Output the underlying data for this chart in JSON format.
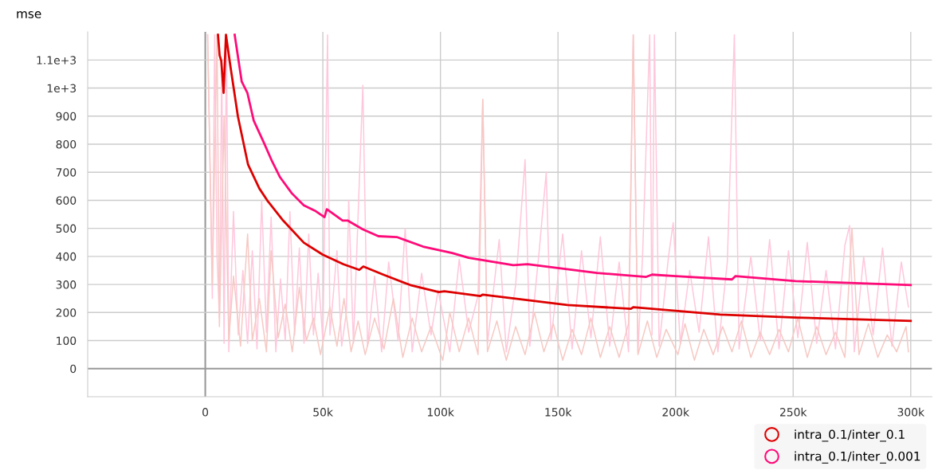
{
  "chart_data": {
    "type": "line",
    "title": "mse",
    "xlim": [
      -50000,
      309000
    ],
    "ylim": [
      -100,
      1200
    ],
    "xticks": [
      {
        "value": 0,
        "label": "0"
      },
      {
        "value": 50000,
        "label": "50k"
      },
      {
        "value": 100000,
        "label": "100k"
      },
      {
        "value": 150000,
        "label": "150k"
      },
      {
        "value": 200000,
        "label": "200k"
      },
      {
        "value": 250000,
        "label": "250k"
      },
      {
        "value": 300000,
        "label": "300k"
      }
    ],
    "yticks": [
      0,
      100,
      200,
      300,
      400,
      500,
      600,
      700,
      800,
      900,
      {
        "value": 1000,
        "label": "1e+3"
      },
      {
        "value": 1100,
        "label": "1.1e+3"
      }
    ],
    "grid": true,
    "legend": "bottom right",
    "series": [
      {
        "color": "#ffc7dc",
        "x": [
          1000,
          3000,
          4000,
          5000,
          6000,
          7000,
          8000,
          9000,
          10000,
          12000,
          14000,
          16000,
          18000,
          20000,
          22000,
          24000,
          26000,
          28000,
          30000,
          32000,
          34000,
          36000,
          38000,
          40000,
          42000,
          44000,
          46000,
          48000,
          50000,
          52000,
          53000,
          56000,
          58000,
          60000,
          61000,
          63000,
          67000,
          69000,
          72000,
          75000,
          78000,
          82000,
          85000,
          88000,
          92000,
          96000,
          99000,
          104000,
          108000,
          112000,
          116000,
          118000,
          120000,
          125000,
          128000,
          132000,
          136000,
          138000,
          142000,
          145000,
          147000,
          152000,
          156000,
          160000,
          164000,
          168000,
          172000,
          176000,
          180000,
          182000,
          184000,
          186000,
          189000,
          190000,
          191000,
          193000,
          197000,
          199000,
          202000,
          206000,
          210000,
          214000,
          218000,
          222000,
          225000,
          227000,
          232000,
          236000,
          240000,
          244000,
          248000,
          252000,
          256000,
          260000,
          264000,
          268000,
          272000,
          274000,
          276000,
          280000,
          284000,
          288000,
          292000,
          296000,
          299000
        ],
        "values": [
          1190,
          250,
          1190,
          400,
          180,
          1080,
          90,
          1190,
          60,
          560,
          120,
          350,
          90,
          420,
          70,
          600,
          130,
          540,
          60,
          320,
          100,
          560,
          120,
          430,
          90,
          480,
          120,
          340,
          100,
          1190,
          120,
          420,
          80,
          200,
          600,
          90,
          1010,
          80,
          330,
          60,
          380,
          100,
          500,
          60,
          340,
          120,
          280,
          60,
          390,
          130,
          260,
          960,
          90,
          460,
          60,
          300,
          745,
          80,
          420,
          700,
          100,
          480,
          70,
          420,
          110,
          470,
          80,
          380,
          60,
          1190,
          60,
          410,
          1190,
          120,
          1190,
          80,
          400,
          520,
          90,
          350,
          130,
          470,
          60,
          380,
          1190,
          70,
          400,
          100,
          460,
          70,
          420,
          110,
          450,
          90,
          350,
          70,
          440,
          510,
          60,
          400,
          120,
          430,
          80,
          380,
          220
        ]
      },
      {
        "color": "#f6c9c4",
        "x": [
          1000,
          3000,
          5000,
          6000,
          8000,
          10000,
          12000,
          15000,
          18000,
          20000,
          23000,
          26000,
          28000,
          31000,
          34000,
          37000,
          40000,
          43000,
          46000,
          49000,
          53000,
          56000,
          59000,
          62000,
          65000,
          68000,
          72000,
          76000,
          80000,
          84000,
          88000,
          92000,
          96000,
          101000,
          104000,
          108000,
          112000,
          116000,
          118000,
          120000,
          124000,
          128000,
          132000,
          136000,
          140000,
          144000,
          148000,
          152000,
          156000,
          160000,
          164000,
          168000,
          172000,
          176000,
          180000,
          182000,
          184000,
          188000,
          192000,
          196000,
          201000,
          204000,
          208000,
          212000,
          216000,
          220000,
          224000,
          228000,
          232000,
          236000,
          240000,
          244000,
          248000,
          252000,
          256000,
          260000,
          264000,
          268000,
          272000,
          275000,
          278000,
          282000,
          286000,
          290000,
          294000,
          298000,
          299000
        ],
        "values": [
          1190,
          300,
          1190,
          150,
          900,
          100,
          330,
          80,
          480,
          100,
          250,
          60,
          420,
          110,
          230,
          60,
          290,
          100,
          180,
          50,
          220,
          80,
          250,
          60,
          170,
          50,
          180,
          70,
          250,
          40,
          180,
          60,
          150,
          30,
          200,
          60,
          180,
          50,
          960,
          60,
          170,
          30,
          150,
          50,
          200,
          60,
          160,
          30,
          140,
          50,
          180,
          40,
          150,
          40,
          160,
          1190,
          50,
          170,
          40,
          140,
          50,
          160,
          30,
          140,
          50,
          150,
          60,
          170,
          40,
          130,
          50,
          140,
          60,
          180,
          40,
          150,
          50,
          130,
          40,
          500,
          50,
          160,
          40,
          120,
          60,
          150,
          60
        ]
      },
      {
        "name": "intra_0.1/inter_0.1",
        "color": "#dd0000",
        "x": [
          5400,
          6100,
          6800,
          7800,
          8800,
          10500,
          13900,
          18200,
          23000,
          26400,
          33100,
          41900,
          50000,
          58800,
          65500,
          67200,
          75700,
          87200,
          99300,
          101700,
          117000,
          118000,
          154000,
          181000,
          182000,
          219000,
          251000,
          300000
        ],
        "values": [
          1190,
          1116,
          1097,
          983,
          1190,
          1088,
          898,
          727,
          642,
          599,
          528,
          449,
          406,
          372,
          352,
          364,
          335,
          298,
          273,
          276,
          259,
          264,
          227,
          213,
          219,
          193,
          182,
          170
        ]
      },
      {
        "name": "intra_0.1/inter_0.001",
        "color": "#ff0a78",
        "x": [
          12500,
          15500,
          17900,
          20600,
          25000,
          28400,
          31800,
          36800,
          41900,
          46600,
          50700,
          51700,
          58400,
          60500,
          66900,
          73600,
          81400,
          92600,
          105000,
          112000,
          131000,
          137000,
          166500,
          187500,
          190000,
          200000,
          224000,
          225500,
          251000,
          300000
        ],
        "values": [
          1190,
          1023,
          983,
          884,
          804,
          739,
          682,
          625,
          582,
          563,
          540,
          568,
          528,
          528,
          497,
          472,
          469,
          435,
          412,
          395,
          369,
          372,
          341,
          327,
          335,
          330,
          318,
          330,
          312,
          298
        ]
      }
    ]
  }
}
